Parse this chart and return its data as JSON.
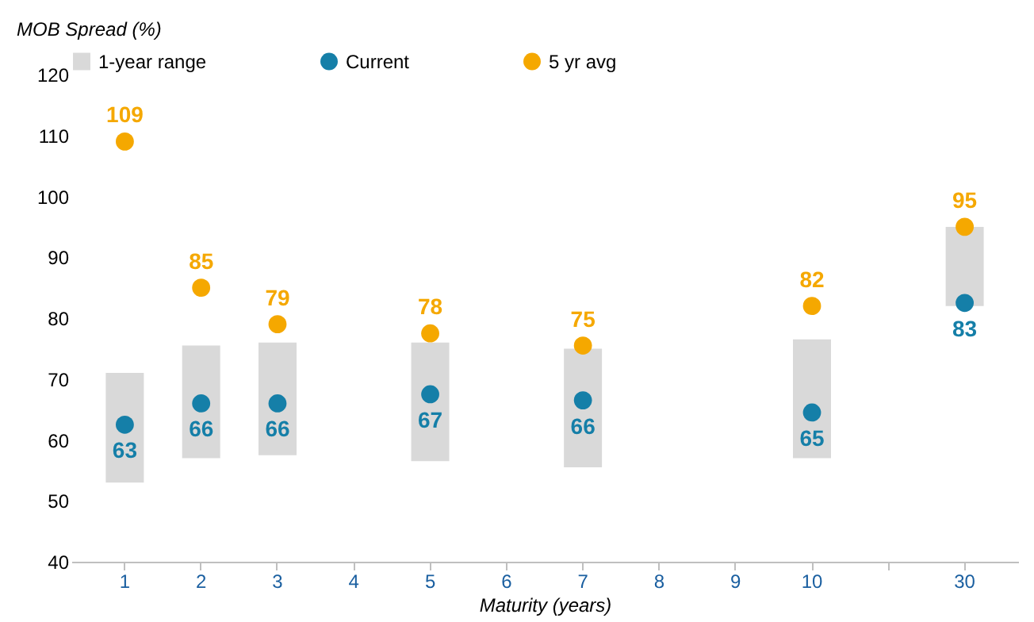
{
  "chart_data": {
    "type": "scatter",
    "ylabel": "MOB Spread  (%)",
    "xlabel": "Maturity  (years)",
    "categories": [
      "1",
      "2",
      "3",
      "4",
      "5",
      "6",
      "7",
      "8",
      "9",
      "10",
      null,
      "30"
    ],
    "ylim": [
      40,
      120
    ],
    "yticks": [
      40,
      50,
      60,
      70,
      80,
      90,
      100,
      110,
      120
    ],
    "grid": false,
    "legend": "top",
    "marker": "circle",
    "series": [
      {
        "name": "1-year range",
        "type": "bar",
        "color": "#d9d9d9",
        "base": [
          53,
          57,
          57.5,
          null,
          56.5,
          null,
          55.5,
          null,
          null,
          57,
          null,
          82
        ],
        "values": [
          18,
          18.5,
          18.5,
          null,
          19.5,
          null,
          19.5,
          null,
          null,
          19.5,
          null,
          13
        ]
      },
      {
        "name": "Current",
        "color": "#157fa8",
        "values": [
          62.5,
          66,
          66,
          null,
          67.5,
          null,
          66.5,
          null,
          null,
          64.5,
          null,
          82.5
        ],
        "value_labels": [
          "63",
          "66",
          "66",
          null,
          "67",
          null,
          "66",
          null,
          null,
          "65",
          null,
          "83"
        ]
      },
      {
        "name": "5 yr avg",
        "color": "#f5a800",
        "values": [
          109,
          85,
          79,
          null,
          77.5,
          null,
          75.5,
          null,
          null,
          82,
          null,
          95
        ],
        "value_labels": [
          "109",
          "85",
          "79",
          null,
          "78",
          null,
          "75",
          null,
          null,
          "82",
          null,
          "95"
        ]
      }
    ]
  }
}
